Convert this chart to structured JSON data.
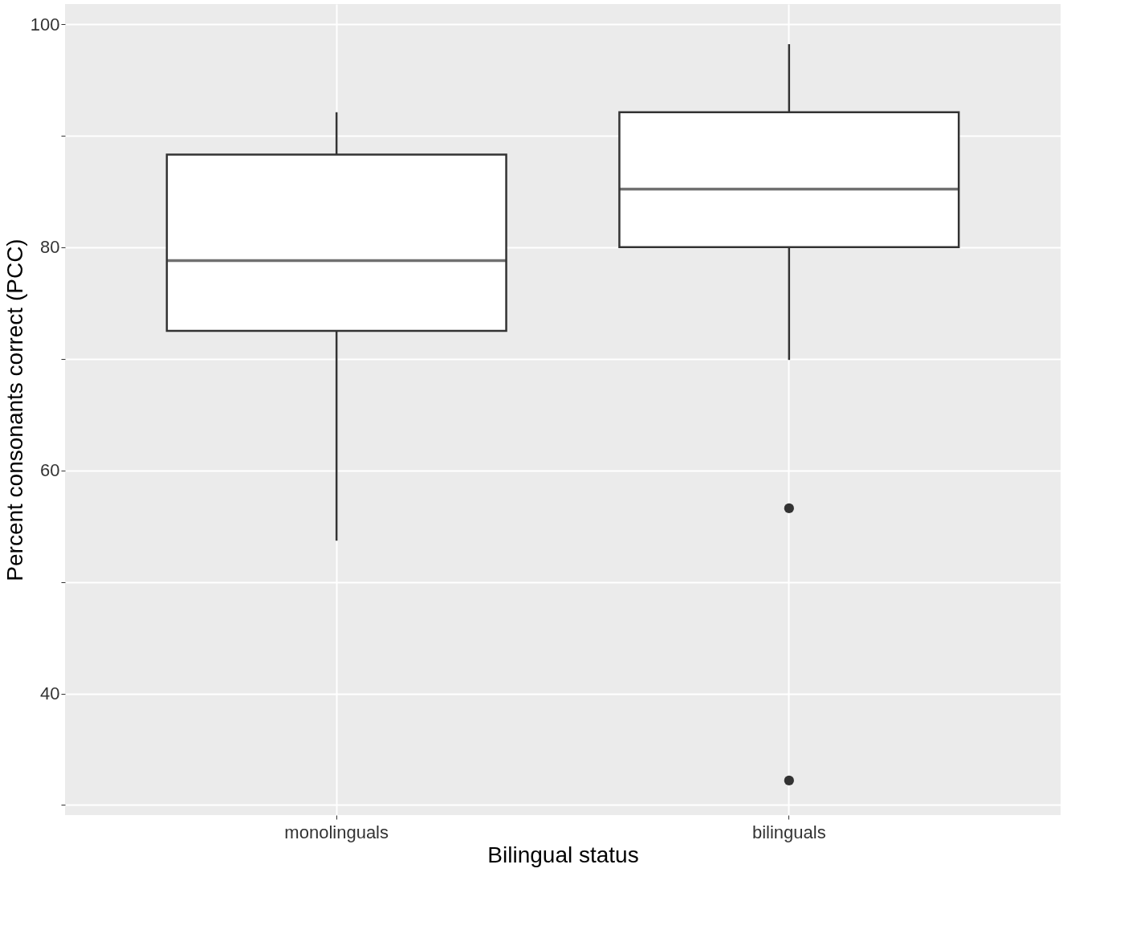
{
  "chart_data": {
    "type": "box",
    "xlabel": "Bilingual status",
    "ylabel": "Percent consonants correct (PCC)",
    "categories": [
      "monolinguals",
      "bilinguals"
    ],
    "boxes": [
      {
        "low": 53.7,
        "q1": 72.5,
        "median": 78.8,
        "q3": 88.3,
        "high": 92.1
      },
      {
        "low": 69.9,
        "q1": 80.0,
        "median": 85.2,
        "q3": 92.1,
        "high": 98.2,
        "outliers": [
          56.6,
          32.2
        ]
      }
    ],
    "ylim": [
      29.1,
      101.8
    ],
    "yticks": [
      {
        "value": 30,
        "label": null
      },
      40,
      {
        "value": 50,
        "label": null
      },
      60,
      {
        "value": 70,
        "label": null
      },
      80,
      {
        "value": 90,
        "label": null
      },
      100
    ],
    "grid": true
  }
}
